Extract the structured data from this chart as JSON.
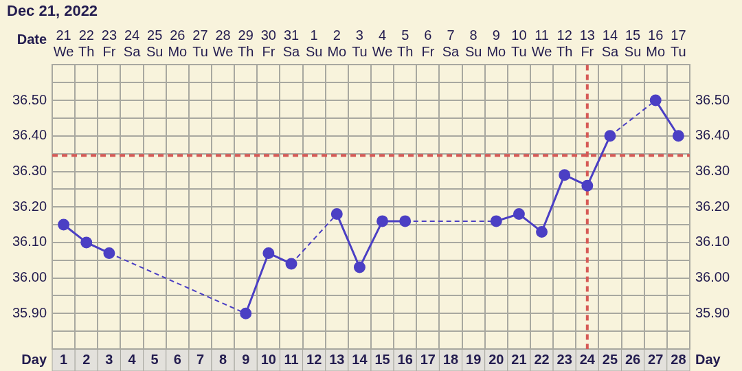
{
  "chart_data": {
    "type": "line",
    "title": "Dec 21, 2022",
    "xlabel": "Day",
    "x2label": "Date",
    "x": [
      1,
      2,
      3,
      4,
      5,
      6,
      7,
      8,
      9,
      10,
      11,
      12,
      13,
      14,
      15,
      16,
      17,
      18,
      19,
      20,
      21,
      22,
      23,
      24,
      25,
      26,
      27,
      28
    ],
    "series": [
      {
        "color": "#4b3fc4",
        "values": [
          36.15,
          36.1,
          36.07,
          null,
          null,
          null,
          null,
          null,
          35.9,
          36.07,
          36.04,
          null,
          36.18,
          36.03,
          36.16,
          36.16,
          null,
          null,
          null,
          36.16,
          36.18,
          36.13,
          36.29,
          36.26,
          36.4,
          null,
          36.5,
          36.4
        ]
      }
    ],
    "xlim": [
      0.5,
      28.5
    ],
    "xticks": [
      1,
      2,
      3,
      4,
      5,
      6,
      7,
      8,
      9,
      10,
      11,
      12,
      13,
      14,
      15,
      16,
      17,
      18,
      19,
      20,
      21,
      22,
      23,
      24,
      25,
      26,
      27,
      28
    ],
    "x2lim": [
      "2022-12-20T12:00",
      "2023-01-17T12:00"
    ],
    "x2ticks": [
      {
        "value": "2022-12-21",
        "label": "21\nWe"
      },
      {
        "value": "2022-12-22",
        "label": "22\nTh"
      },
      {
        "value": "2022-12-23",
        "label": "23\nFr"
      },
      {
        "value": "2022-12-24",
        "label": "24\nSa"
      },
      {
        "value": "2022-12-25",
        "label": "25\nSu"
      },
      {
        "value": "2022-12-26",
        "label": "26\nMo"
      },
      {
        "value": "2022-12-27",
        "label": "27\nTu"
      },
      {
        "value": "2022-12-28",
        "label": "28\nWe"
      },
      {
        "value": "2022-12-29",
        "label": "29\nTh"
      },
      {
        "value": "2022-12-30",
        "label": "30\nFr"
      },
      {
        "value": "2022-12-31",
        "label": "31\nSa"
      },
      {
        "value": "2023-01-01",
        "label": "1\nSu"
      },
      {
        "value": "2023-01-02",
        "label": "2\nMo"
      },
      {
        "value": "2023-01-03",
        "label": "3\nTu"
      },
      {
        "value": "2023-01-04",
        "label": "4\nWe"
      },
      {
        "value": "2023-01-05",
        "label": "5\nTh"
      },
      {
        "value": "2023-01-06",
        "label": "6\nFr"
      },
      {
        "value": "2023-01-07",
        "label": "7\nSa"
      },
      {
        "value": "2023-01-08",
        "label": "8\nSu"
      },
      {
        "value": "2023-01-09",
        "label": "9\nMo"
      },
      {
        "value": "2023-01-10",
        "label": "10\nTu"
      },
      {
        "value": "2023-01-11",
        "label": "11\nWe"
      },
      {
        "value": "2023-01-12",
        "label": "12\nTh"
      },
      {
        "value": "2023-01-13",
        "label": "13\nFr"
      },
      {
        "value": "2023-01-14",
        "label": "14\nSa"
      },
      {
        "value": "2023-01-15",
        "label": "15\nSu"
      },
      {
        "value": "2023-01-16",
        "label": "16\nMo"
      },
      {
        "value": "2023-01-17",
        "label": "17\nTu"
      }
    ],
    "ylim": [
      35.8,
      36.6
    ],
    "yticks": [
      {
        "value": 35.85,
        "label": null
      },
      {
        "value": 35.9,
        "label": "35.90"
      },
      {
        "value": 35.95,
        "label": null
      },
      {
        "value": 36.0,
        "label": "36.00"
      },
      {
        "value": 36.05,
        "label": null
      },
      {
        "value": 36.1,
        "label": "36.10"
      },
      {
        "value": 36.15,
        "label": null
      },
      {
        "value": 36.2,
        "label": "36.20"
      },
      {
        "value": 36.25,
        "label": null
      },
      {
        "value": 36.3,
        "label": "36.30"
      },
      {
        "value": 36.35,
        "label": null
      },
      {
        "value": 36.4,
        "label": "36.40"
      },
      {
        "value": 36.45,
        "label": null
      },
      {
        "value": 36.5,
        "label": "36.50"
      },
      {
        "value": 36.55,
        "label": null
      }
    ],
    "y2lim": [
      35.8,
      36.6
    ],
    "y2ticks": [
      {
        "value": 35.85,
        "label": null
      },
      {
        "value": 35.9,
        "label": "35.90"
      },
      {
        "value": 35.95,
        "label": null
      },
      {
        "value": 36.0,
        "label": "36.00"
      },
      {
        "value": 36.05,
        "label": null
      },
      {
        "value": 36.1,
        "label": "36.10"
      },
      {
        "value": 36.15,
        "label": null
      },
      {
        "value": 36.2,
        "label": "36.20"
      },
      {
        "value": 36.25,
        "label": null
      },
      {
        "value": 36.3,
        "label": "36.30"
      },
      {
        "value": 36.35,
        "label": null
      },
      {
        "value": 36.4,
        "label": "36.40"
      },
      {
        "value": 36.45,
        "label": null
      },
      {
        "value": 36.5,
        "label": "36.50"
      },
      {
        "value": 36.55,
        "label": null
      }
    ],
    "ref_lines": [
      {
        "axis": "y",
        "value": 36.345,
        "color": "#d65a56",
        "line_style": "dashed"
      },
      {
        "axis": "x",
        "value": 24,
        "color": "#d65a56",
        "line_style": "dashed"
      }
    ],
    "grid": true,
    "legend": false,
    "marker": "circle",
    "line_style": "solid"
  }
}
